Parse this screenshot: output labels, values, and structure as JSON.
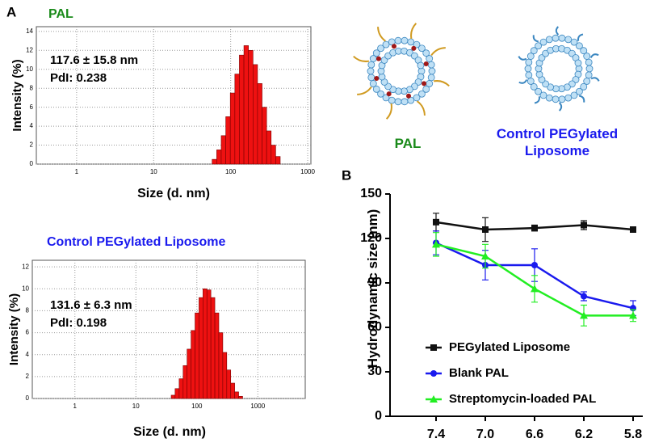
{
  "panel_labels": [
    "A",
    "B"
  ],
  "diagram": {
    "labels": [
      "PAL",
      "Control PEGylated Liposome"
    ]
  },
  "chart_data": [
    {
      "type": "histogram",
      "title": "PAL",
      "title_color": "#1a8a1a",
      "annotations": [
        "117.6 ± 15.8 nm",
        "PdI: 0.238"
      ],
      "x_label": "Size (d. nm)",
      "y_label": "Intensity (%)",
      "log_x": true,
      "grid": true,
      "color": "#ee1111",
      "bins": [
        57.5,
        65.9,
        75.4,
        86.4,
        98.9,
        113.3,
        129.7,
        148.6,
        170.1,
        194.9,
        223.1,
        255.6,
        292.7,
        335.2,
        383.9,
        439.6
      ],
      "values": [
        0.5,
        1.5,
        3,
        5,
        7.5,
        9.5,
        11.5,
        12.5,
        12,
        10.5,
        8.5,
        6,
        3.5,
        2,
        0.8
      ],
      "xlim": [
        0.3,
        1100
      ],
      "xticks": [
        1,
        10,
        100,
        1000
      ],
      "ylim": [
        0,
        14.5
      ],
      "yticks": [
        0,
        2,
        4,
        6,
        8,
        10,
        12,
        14
      ]
    },
    {
      "type": "histogram",
      "title": "Control PEGylated Liposome",
      "title_color": "#1a1aee",
      "annotations": [
        "131.6 ± 6.3 nm",
        "PdI: 0.198"
      ],
      "x_label": "Size (d. nm)",
      "y_label": "Intensity (%)",
      "log_x": true,
      "grid": true,
      "color": "#ee1111",
      "bins": [
        38,
        44,
        51.3,
        59.6,
        69.2,
        80.4,
        93.4,
        108.5,
        126,
        146.4,
        170,
        197.5,
        229.4,
        266.5,
        309.6,
        359.6,
        417.7,
        485.3,
        563.7
      ],
      "values": [
        0.3,
        0.9,
        1.8,
        3,
        4.5,
        6.2,
        7.8,
        9.2,
        10,
        9.9,
        9.2,
        7.8,
        6,
        4.2,
        2.6,
        1.4,
        0.6,
        0.2
      ],
      "xlim": [
        0.2,
        6000
      ],
      "xticks": [
        1,
        10,
        100,
        1000
      ],
      "ylim": [
        0,
        12.6
      ],
      "yticks": [
        0,
        2,
        4,
        6,
        8,
        10,
        12
      ]
    },
    {
      "type": "line",
      "y_label": "Hydrodynamic size (nm)",
      "categories": [
        "7.4",
        "7.0",
        "6.6",
        "6.2",
        "5.8"
      ],
      "ylim": [
        0,
        150
      ],
      "yticks": [
        0,
        30,
        60,
        90,
        120,
        150
      ],
      "series": [
        {
          "name": "PEGylated Liposome",
          "color": "#111111",
          "marker": "square",
          "values": [
            131,
            126,
            127,
            129,
            126
          ],
          "errors": [
            6,
            8,
            2,
            3,
            1
          ]
        },
        {
          "name": "Blank PAL",
          "color": "#1a1aee",
          "marker": "circle",
          "values": [
            117,
            102,
            102,
            81,
            73
          ],
          "errors": [
            8,
            10,
            11,
            3,
            5
          ]
        },
        {
          "name": "Streptomycin-loaded PAL",
          "color": "#22ee22",
          "marker": "triangle",
          "values": [
            116,
            108,
            86,
            68,
            68
          ],
          "errors": [
            8,
            8,
            9,
            7,
            4
          ]
        }
      ]
    }
  ]
}
